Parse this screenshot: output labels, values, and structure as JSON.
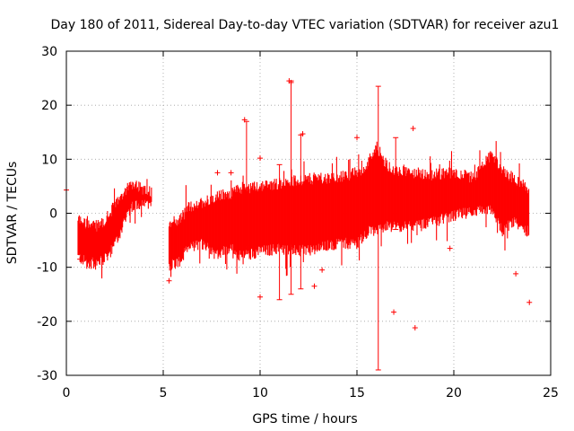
{
  "chart_data": {
    "type": "scatter",
    "title": "Day 180 of 2011, Sidereal Day-to-day VTEC variation (SDTVAR) for receiver azu1",
    "xlabel": "GPS time / hours",
    "ylabel": "SDTVAR / TECUs",
    "xlim": [
      0,
      25
    ],
    "ylim": [
      -30,
      30
    ],
    "xticks": [
      0,
      5,
      10,
      15,
      20,
      25
    ],
    "yticks": [
      -30,
      -20,
      -10,
      0,
      10,
      20,
      30
    ],
    "grid": true,
    "legend": "none",
    "marker": "plus",
    "series_color": "#ff0000",
    "bands": [
      {
        "name": "segment-1a",
        "x": [
          0.6,
          1.0,
          1.5,
          2.0,
          2.5,
          3.0,
          3.3,
          3.6,
          4.0,
          4.4
        ],
        "lower": [
          -8.5,
          -9.5,
          -9.8,
          -9.0,
          -6.5,
          -2.0,
          0.5,
          1.5,
          1.0,
          1.0
        ],
        "upper": [
          -0.5,
          -1.5,
          -2.0,
          -1.0,
          2.0,
          4.5,
          6.0,
          5.8,
          4.5,
          4.5
        ]
      },
      {
        "name": "segment-2",
        "x": [
          5.3,
          5.8,
          6.3,
          7.0,
          7.7,
          8.5,
          9.0,
          10.0,
          11.0,
          12.0,
          13.0,
          14.0,
          15.0,
          15.5,
          16.0,
          16.5,
          17.0,
          18.0,
          19.0,
          20.0,
          21.0,
          22.0,
          22.5,
          23.0,
          23.5,
          23.9
        ],
        "lower": [
          -10.0,
          -9.5,
          -7.0,
          -6.0,
          -8.0,
          -7.0,
          -8.5,
          -7.5,
          -7.0,
          -7.5,
          -7.0,
          -6.0,
          -6.0,
          -4.0,
          -3.5,
          -3.0,
          -3.0,
          -3.0,
          -2.0,
          -1.0,
          0.0,
          0.0,
          -4.0,
          -2.0,
          -3.0,
          -4.0
        ],
        "upper": [
          -1.0,
          -1.0,
          1.5,
          2.5,
          3.5,
          4.0,
          5.0,
          5.5,
          6.0,
          6.5,
          7.0,
          7.0,
          8.0,
          9.0,
          13.0,
          9.5,
          8.5,
          8.0,
          7.5,
          8.0,
          7.0,
          11.5,
          8.0,
          7.0,
          6.0,
          5.0
        ]
      }
    ],
    "spikes": [
      {
        "x": 16.1,
        "low": -29.0,
        "high": 23.5
      },
      {
        "x": 11.6,
        "low": -15.0,
        "high": 24.5
      },
      {
        "x": 9.3,
        "low": -6.0,
        "high": 17.0
      },
      {
        "x": 12.1,
        "low": -14.0,
        "high": 14.5
      },
      {
        "x": 11.0,
        "low": -16.0,
        "high": 9.0
      },
      {
        "x": 17.0,
        "low": -3.0,
        "high": 14.0
      }
    ],
    "outliers": [
      {
        "x": 0.0,
        "y": 4.3
      },
      {
        "x": 0.7,
        "y": -8.5
      },
      {
        "x": 5.3,
        "y": -12.5
      },
      {
        "x": 7.8,
        "y": 7.5
      },
      {
        "x": 8.5,
        "y": 7.5
      },
      {
        "x": 9.2,
        "y": 17.3
      },
      {
        "x": 10.0,
        "y": 10.2
      },
      {
        "x": 11.5,
        "y": 24.5
      },
      {
        "x": 11.6,
        "y": 24.2
      },
      {
        "x": 12.2,
        "y": 14.7
      },
      {
        "x": 12.8,
        "y": -13.5
      },
      {
        "x": 13.2,
        "y": -10.5
      },
      {
        "x": 15.0,
        "y": 14.0
      },
      {
        "x": 16.9,
        "y": -18.3
      },
      {
        "x": 17.9,
        "y": 15.7
      },
      {
        "x": 18.0,
        "y": -21.2
      },
      {
        "x": 19.8,
        "y": -6.5
      },
      {
        "x": 23.2,
        "y": -11.2
      },
      {
        "x": 23.9,
        "y": -16.5
      },
      {
        "x": 10.0,
        "y": -15.5
      }
    ]
  }
}
